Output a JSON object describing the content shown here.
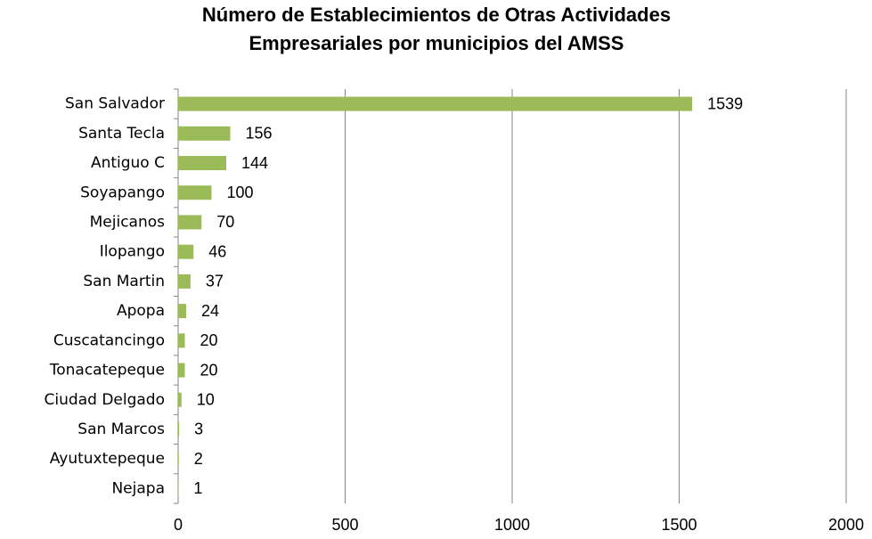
{
  "chart_data": {
    "type": "barh",
    "title": [
      "Número de Establecimientos de Otras Actividades",
      "Empresariales por municipios del AMSS"
    ],
    "categories": [
      "San Salvador",
      "Santa Tecla",
      "Antiguo C",
      "Soyapango",
      "Mejicanos",
      "Ilopango",
      "San Martin",
      "Apopa",
      "Cuscatancingo",
      "Tonacatepeque",
      "Ciudad Delgado",
      "San Marcos",
      "Ayutuxtepeque",
      "Nejapa"
    ],
    "values": [
      1539,
      156,
      144,
      100,
      70,
      46,
      37,
      24,
      20,
      20,
      10,
      3,
      2,
      1
    ],
    "color": "#9bbb59",
    "xlim": [
      0,
      2000
    ],
    "xticks": [
      0,
      500,
      1000,
      1500,
      2000
    ],
    "grid": true
  }
}
